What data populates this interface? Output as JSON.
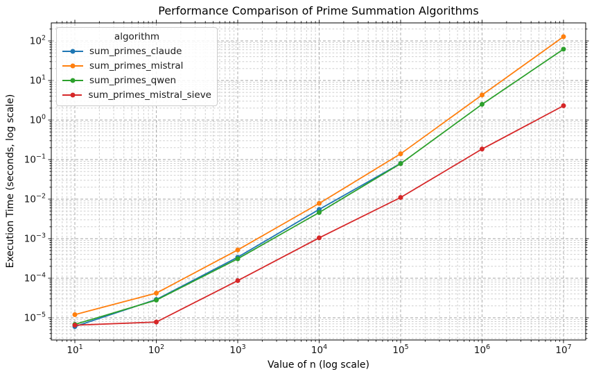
{
  "title": "Performance Comparison of Prime Summation Algorithms",
  "xlabel": "Value of n (log scale)",
  "ylabel": "Execution Time (seconds, log scale)",
  "legend": {
    "title": "algorithm",
    "entries": [
      "sum_primes_claude",
      "sum_primes_mistral",
      "sum_primes_qwen",
      "sum_primes_mistral_sieve"
    ]
  },
  "chart_data": {
    "type": "line",
    "xscale": "log",
    "yscale": "log",
    "x": [
      10,
      100,
      1000,
      10000,
      100000,
      1000000,
      10000000
    ],
    "series": [
      {
        "name": "sum_primes_claude",
        "color": "#1f77b4",
        "values": [
          6e-06,
          2.9e-05,
          0.00034,
          0.0055,
          0.08,
          null,
          null
        ],
        "note": "line ends at n=1e5 where it coincides with sum_primes_qwen"
      },
      {
        "name": "sum_primes_mistral",
        "color": "#ff7f0e",
        "values": [
          1.2e-05,
          4.2e-05,
          0.00052,
          0.0078,
          0.14,
          4.3,
          128
        ]
      },
      {
        "name": "sum_primes_qwen",
        "color": "#2ca02c",
        "values": [
          6.8e-06,
          2.8e-05,
          0.00031,
          0.0046,
          0.079,
          2.5,
          62
        ]
      },
      {
        "name": "sum_primes_mistral_sieve",
        "color": "#d62728",
        "values": [
          6.5e-06,
          7.8e-06,
          8.7e-05,
          0.00105,
          0.011,
          0.185,
          2.3
        ]
      }
    ],
    "x_tick_exponents": [
      1,
      2,
      3,
      4,
      5,
      6,
      7
    ],
    "y_tick_exponents": [
      2,
      1,
      0,
      -1,
      -2,
      -3,
      -4,
      -5
    ],
    "xlim_log10": [
      0.711,
      7.272
    ],
    "ylim_log10": [
      -5.561,
      2.456
    ],
    "grid": "major and minor, dashed gray",
    "legend_position": "upper left",
    "marker": "circle",
    "colors": {
      "major_grid": "#a3a3a3",
      "minor_grid": "#c6c6c6",
      "spine": "#000000",
      "tick_label": "#111111"
    }
  }
}
